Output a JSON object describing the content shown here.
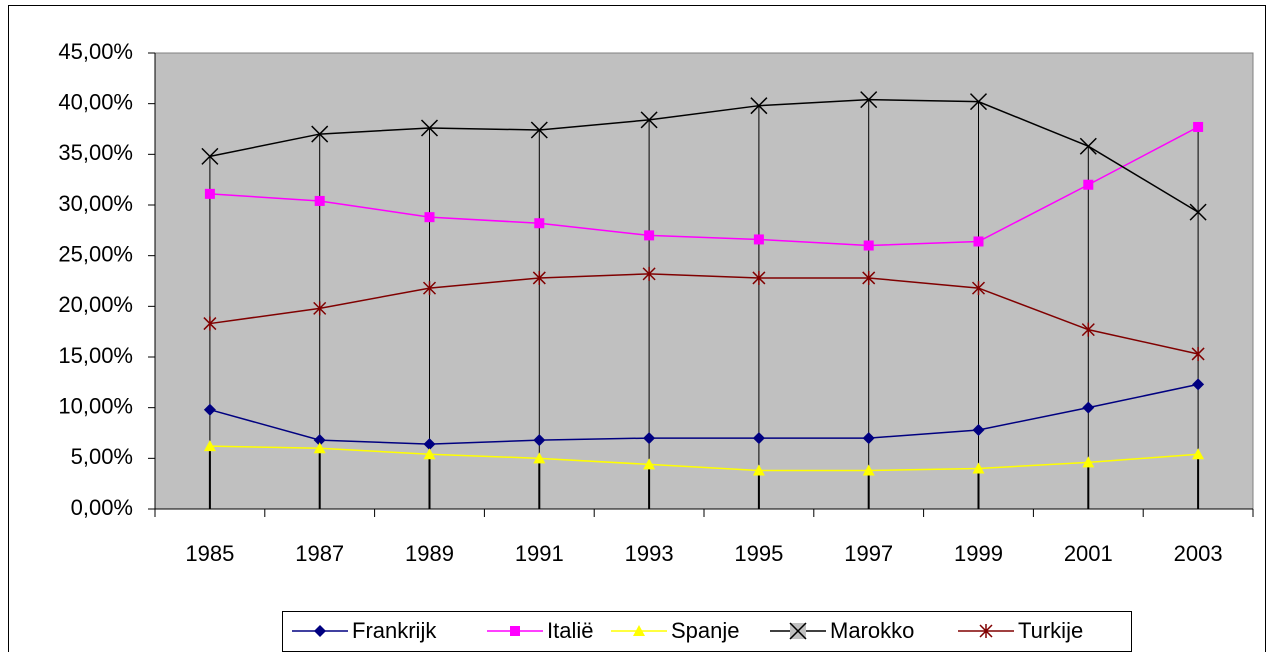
{
  "chart_data": {
    "type": "line",
    "categories": [
      "1985",
      "1987",
      "1989",
      "1991",
      "1993",
      "1995",
      "1997",
      "1999",
      "2001",
      "2003"
    ],
    "series": [
      {
        "name": "Frankrijk",
        "color": "#000080",
        "marker": "diamond",
        "values": [
          9.8,
          6.8,
          6.4,
          6.8,
          7.0,
          7.0,
          7.0,
          7.8,
          10.0,
          12.3
        ]
      },
      {
        "name": "Italië",
        "color": "#ff00ff",
        "marker": "square",
        "values": [
          31.1,
          30.4,
          28.8,
          28.2,
          27.0,
          26.6,
          26.0,
          26.4,
          32.0,
          37.7
        ]
      },
      {
        "name": "Spanje",
        "color": "#ffff00",
        "marker": "triangle",
        "values": [
          6.2,
          6.0,
          5.4,
          5.0,
          4.4,
          3.8,
          3.8,
          4.0,
          4.6,
          5.4
        ]
      },
      {
        "name": "Marokko",
        "color": "#000000",
        "marker": "x",
        "values": [
          34.8,
          37.0,
          37.6,
          37.4,
          38.4,
          39.8,
          40.4,
          40.2,
          35.8,
          29.3
        ]
      },
      {
        "name": "Turkije",
        "color": "#800000",
        "marker": "star",
        "values": [
          18.3,
          19.8,
          21.8,
          22.8,
          23.2,
          22.8,
          22.8,
          21.8,
          17.7,
          15.3
        ]
      }
    ],
    "ylim": [
      0,
      45
    ],
    "yticks": [
      {
        "value": 0,
        "label": "0,00%"
      },
      {
        "value": 5,
        "label": "5,00%"
      },
      {
        "value": 10,
        "label": "10,00%"
      },
      {
        "value": 15,
        "label": "15,00%"
      },
      {
        "value": 20,
        "label": "20,00%"
      },
      {
        "value": 25,
        "label": "25,00%"
      },
      {
        "value": 30,
        "label": "30,00%"
      },
      {
        "value": 35,
        "label": "35,00%"
      },
      {
        "value": 40,
        "label": "40,00%"
      },
      {
        "value": 45,
        "label": "45,00%"
      }
    ],
    "high_low_lines": true,
    "legend": "bottom"
  }
}
